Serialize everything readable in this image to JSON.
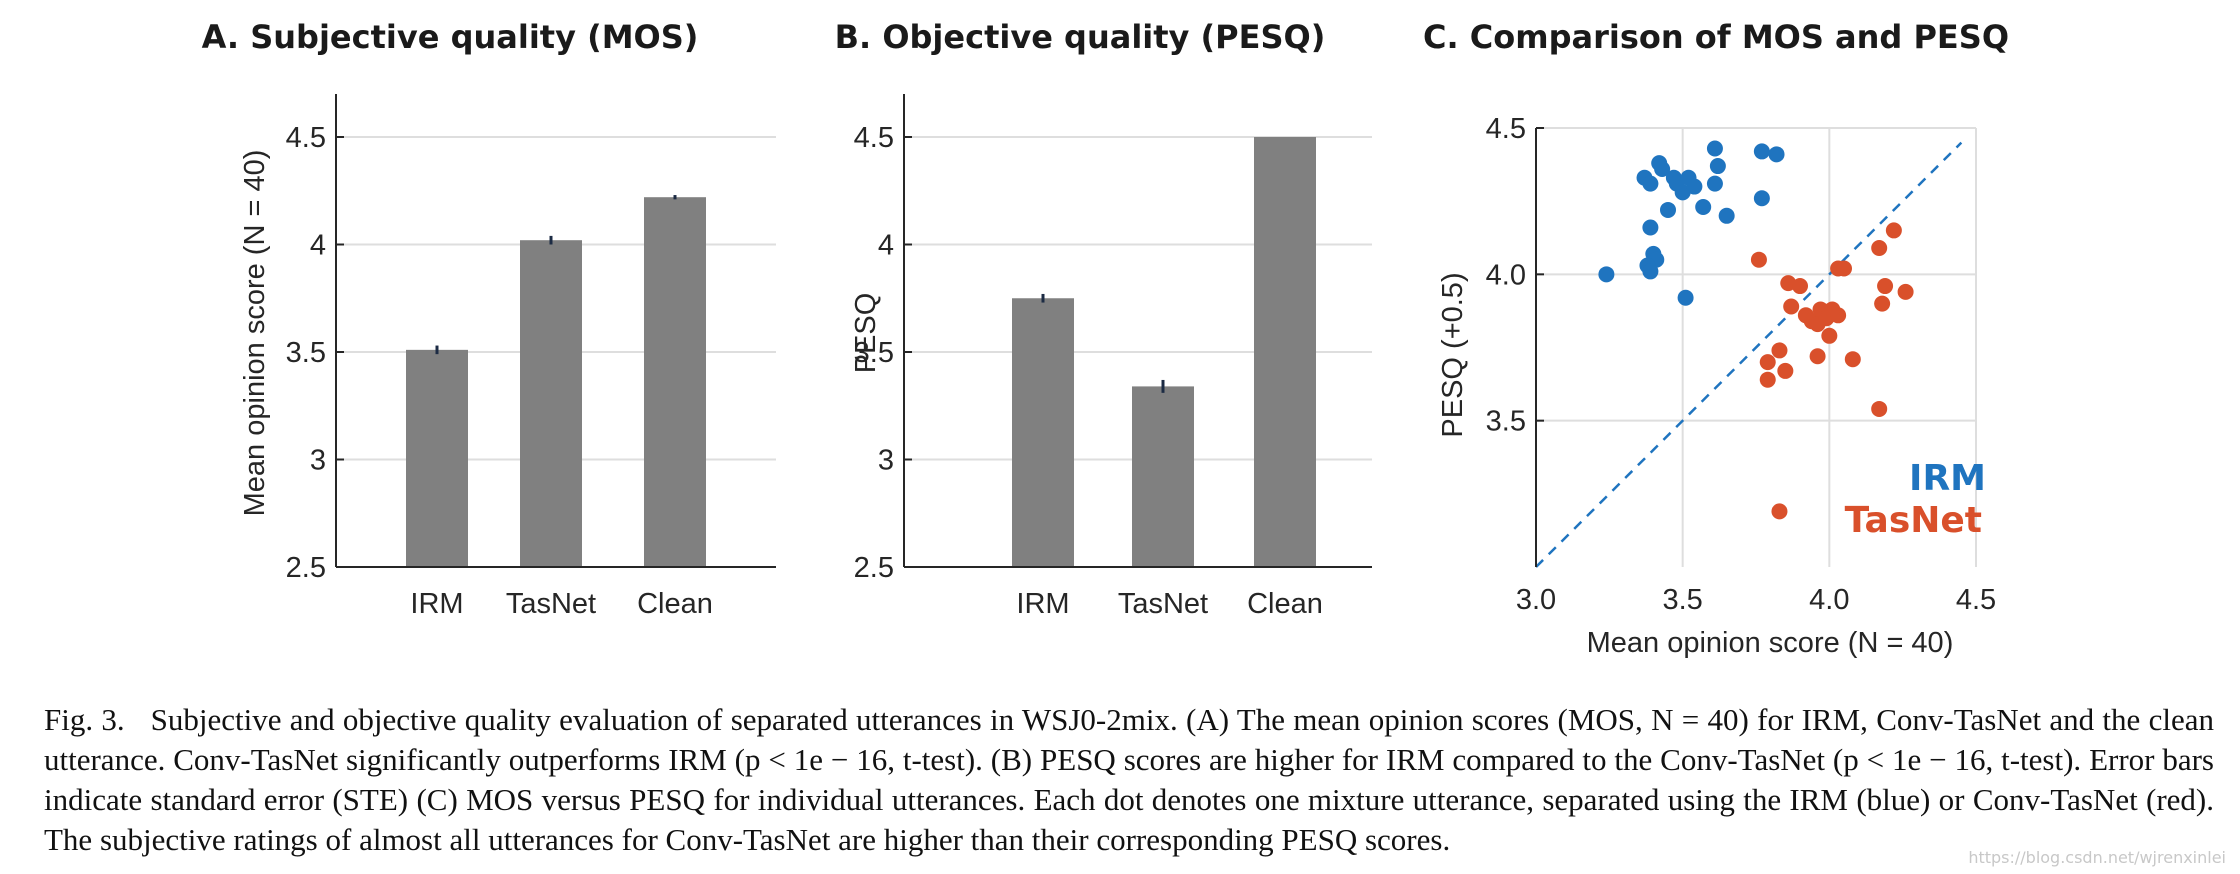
{
  "chart_data": [
    {
      "type": "bar",
      "title": "A. Subjective quality (MOS)",
      "xlabel": "",
      "ylabel": "Mean opinion score (N = 40)",
      "categories": [
        "IRM",
        "TasNet",
        "Clean"
      ],
      "values": [
        3.51,
        4.02,
        4.22
      ],
      "errors": [
        0.02,
        0.02,
        0.01
      ],
      "ylim": [
        2.5,
        4.7
      ],
      "yticks": [
        2.5,
        3,
        3.5,
        4,
        4.5
      ],
      "ytick_labels": [
        "2.5",
        "3",
        "3.5",
        "4",
        "4.5"
      ],
      "grid": true,
      "bar_color": "#808080"
    },
    {
      "type": "bar",
      "title": "B. Objective quality (PESQ)",
      "xlabel": "",
      "ylabel": "PESQ",
      "categories": [
        "IRM",
        "TasNet",
        "Clean"
      ],
      "values": [
        3.75,
        3.34,
        4.5
      ],
      "errors": [
        0.02,
        0.03,
        0
      ],
      "ylim": [
        2.5,
        4.7
      ],
      "yticks": [
        2.5,
        3,
        3.5,
        4,
        4.5
      ],
      "ytick_labels": [
        "2.5",
        "3",
        "3.5",
        "4",
        "4.5"
      ],
      "grid": true,
      "bar_color": "#808080"
    },
    {
      "type": "scatter",
      "title": "C. Comparison of MOS and PESQ",
      "xlabel": "Mean opinion score (N = 40)",
      "ylabel": "PESQ (+0.5)",
      "xlim": [
        3.0,
        4.5
      ],
      "ylim": [
        3.0,
        4.5
      ],
      "xticks": [
        3.0,
        3.5,
        4.0,
        4.5
      ],
      "xtick_labels": [
        "3.0",
        "3.5",
        "4.0",
        "4.5"
      ],
      "yticks": [
        3.5,
        4.0,
        4.5
      ],
      "ytick_labels": [
        "3.5",
        "4.0",
        "4.5"
      ],
      "grid": true,
      "diagonal": true,
      "legend": "bottom-right",
      "series": [
        {
          "name": "IRM",
          "color": "#1f74bf",
          "points": [
            [
              3.24,
              4.0
            ],
            [
              3.37,
              4.33
            ],
            [
              3.39,
              4.31
            ],
            [
              3.42,
              4.38
            ],
            [
              3.43,
              4.36
            ],
            [
              3.47,
              4.33
            ],
            [
              3.48,
              4.31
            ],
            [
              3.5,
              4.28
            ],
            [
              3.52,
              4.33
            ],
            [
              3.54,
              4.3
            ],
            [
              3.61,
              4.43
            ],
            [
              3.62,
              4.37
            ],
            [
              3.61,
              4.31
            ],
            [
              3.57,
              4.23
            ],
            [
              3.65,
              4.2
            ],
            [
              3.45,
              4.22
            ],
            [
              3.39,
              4.16
            ],
            [
              3.4,
              4.07
            ],
            [
              3.41,
              4.05
            ],
            [
              3.38,
              4.03
            ],
            [
              3.39,
              4.01
            ],
            [
              3.51,
              3.92
            ],
            [
              3.77,
              4.42
            ],
            [
              3.82,
              4.41
            ],
            [
              3.77,
              4.26
            ]
          ]
        },
        {
          "name": "TasNet",
          "color": "#d9502b",
          "points": [
            [
              3.76,
              4.05
            ],
            [
              3.86,
              3.97
            ],
            [
              3.87,
              3.89
            ],
            [
              3.9,
              3.96
            ],
            [
              3.92,
              3.86
            ],
            [
              3.94,
              3.84
            ],
            [
              3.96,
              3.83
            ],
            [
              3.97,
              3.88
            ],
            [
              3.99,
              3.85
            ],
            [
              4.0,
              3.79
            ],
            [
              4.03,
              4.02
            ],
            [
              4.05,
              4.02
            ],
            [
              4.01,
              3.88
            ],
            [
              4.03,
              3.86
            ],
            [
              3.96,
              3.72
            ],
            [
              3.83,
              3.74
            ],
            [
              3.79,
              3.7
            ],
            [
              3.79,
              3.64
            ],
            [
              3.85,
              3.67
            ],
            [
              4.08,
              3.71
            ],
            [
              4.17,
              4.09
            ],
            [
              4.22,
              4.15
            ],
            [
              4.19,
              3.96
            ],
            [
              4.18,
              3.9
            ],
            [
              4.26,
              3.94
            ],
            [
              4.17,
              3.54
            ],
            [
              3.83,
              3.19
            ]
          ]
        }
      ]
    }
  ],
  "caption": {
    "label": "Fig. 3.",
    "text": "Subjective and objective quality evaluation of separated utterances in WSJ0-2mix. (A) The mean opinion scores (MOS, N = 40) for IRM, Conv-TasNet and the clean utterance. Conv-TasNet significantly outperforms IRM (p < 1e − 16, t-test). (B) PESQ scores are higher for IRM compared to the Conv-TasNet (p < 1e − 16, t-test). Error bars indicate standard error (STE) (C) MOS versus PESQ for individual utterances. Each dot denotes one mixture utterance, separated using the IRM (blue) or Conv-TasNet (red). The subjective ratings of almost all utterances for Conv-TasNet are higher than their corresponding PESQ scores."
  },
  "watermark": "https://blog.csdn.net/wjrenxinlei"
}
